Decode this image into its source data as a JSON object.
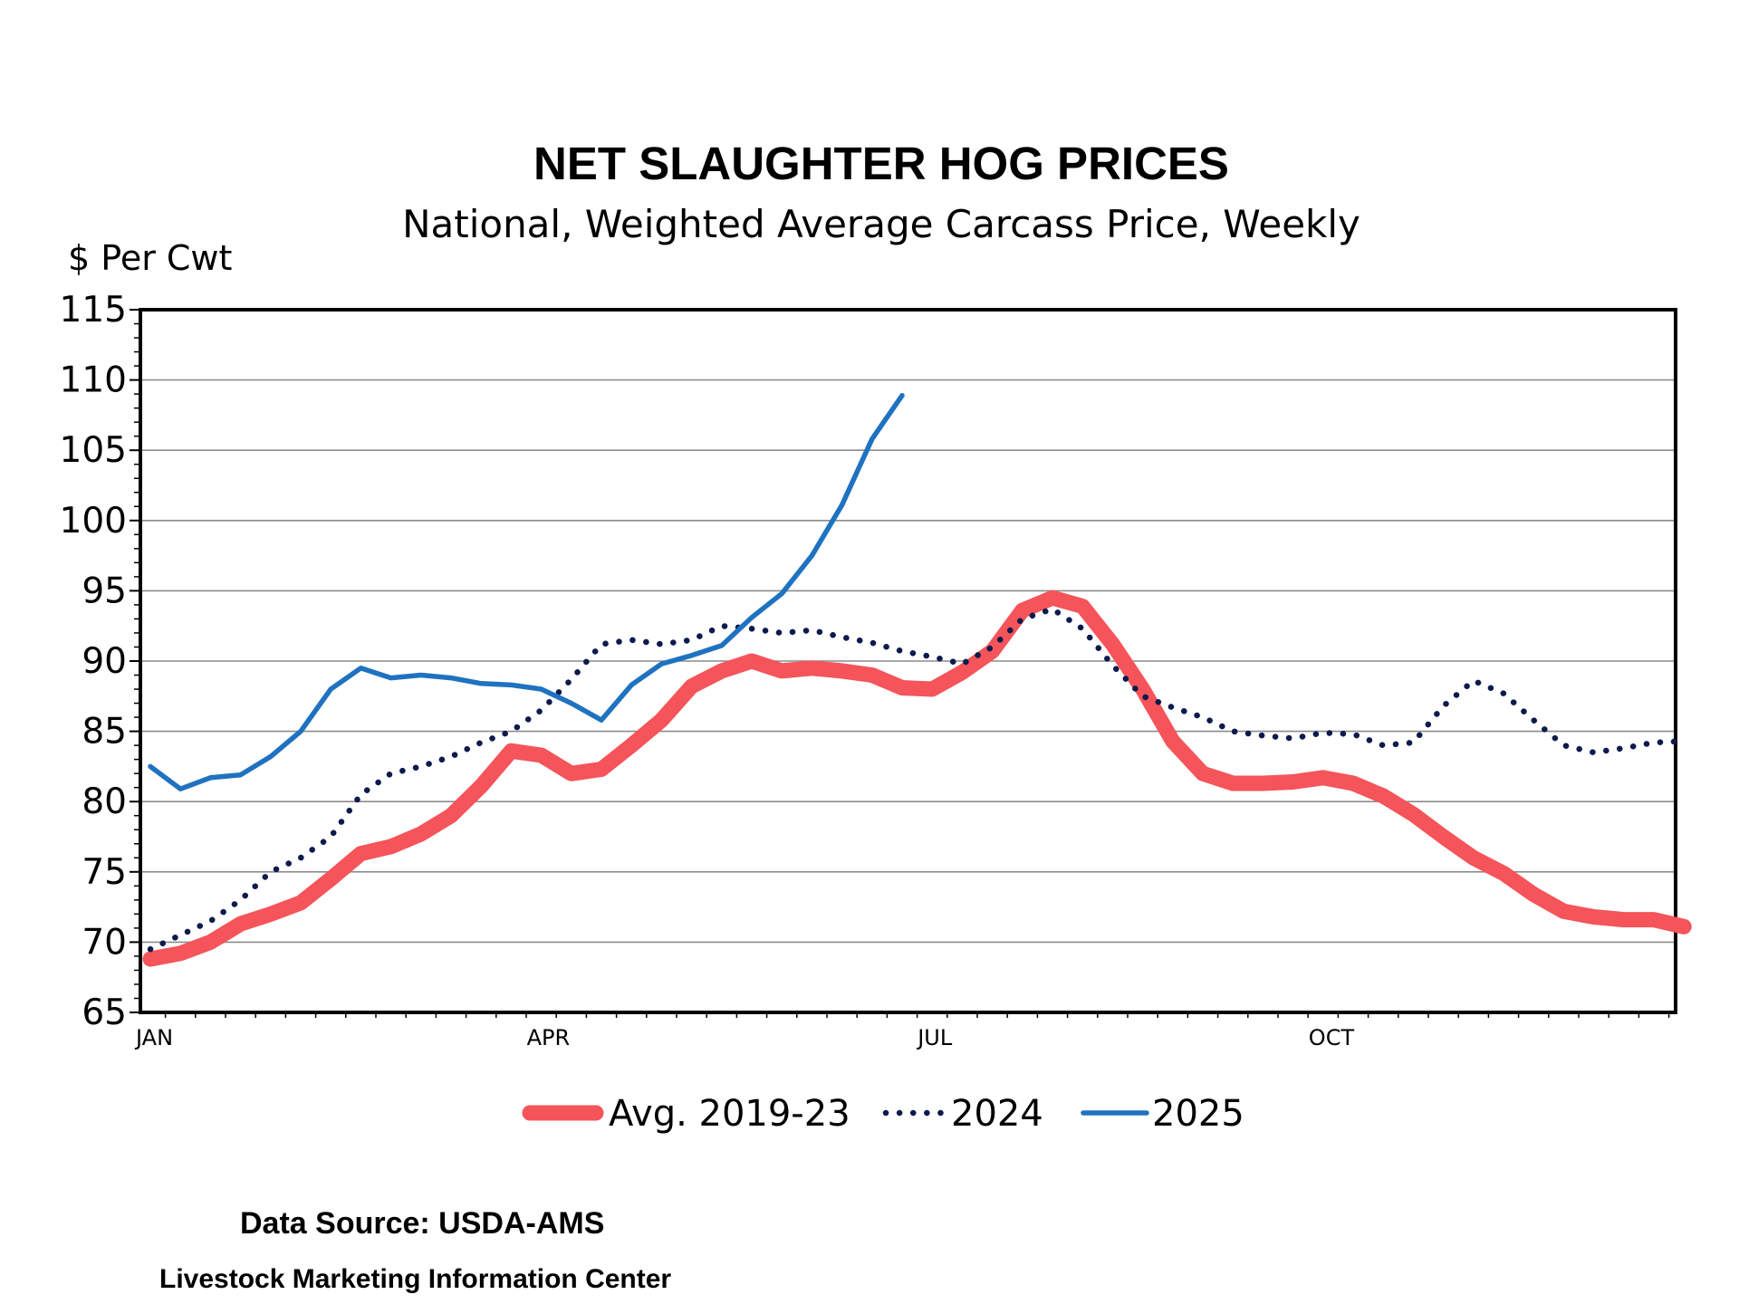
{
  "chart_data": {
    "type": "line",
    "title": "NET SLAUGHTER HOG PRICES",
    "subtitle": "National, Weighted Average Carcass Price, Weekly",
    "ylabel": "$ Per Cwt",
    "xlabel": "",
    "ylim": [
      65,
      115
    ],
    "yticks": [
      65,
      70,
      75,
      80,
      85,
      90,
      95,
      100,
      105,
      110,
      115
    ],
    "xlim": [
      1,
      52
    ],
    "xtick_labels": [
      {
        "label": "JAN",
        "week": 1
      },
      {
        "label": "APR",
        "week": 14
      },
      {
        "label": "JUL",
        "week": 27
      },
      {
        "label": "OCT",
        "week": 40
      }
    ],
    "grid": true,
    "legend_position": "bottom",
    "series": [
      {
        "name": "Avg. 2019-23",
        "style": "thick-solid",
        "color": "#f4545a",
        "x": [
          1,
          2,
          3,
          4,
          5,
          6,
          7,
          8,
          9,
          10,
          11,
          12,
          13,
          14,
          15,
          16,
          17,
          18,
          19,
          20,
          21,
          22,
          23,
          24,
          25,
          26,
          27,
          28,
          29,
          30,
          31,
          32,
          33,
          34,
          35,
          36,
          37,
          38,
          39,
          40,
          41,
          42,
          43,
          44,
          45,
          46,
          47,
          48,
          49,
          50,
          51,
          52
        ],
        "values": [
          68.8,
          69.2,
          70.0,
          71.3,
          72.0,
          72.8,
          74.5,
          76.3,
          76.8,
          77.7,
          79.0,
          81.1,
          83.6,
          83.3,
          82.0,
          82.3,
          84.0,
          85.8,
          88.2,
          89.3,
          90.0,
          89.3,
          89.5,
          89.3,
          89.0,
          88.1,
          88.0,
          89.2,
          90.7,
          93.6,
          94.5,
          93.9,
          91.2,
          88.0,
          84.3,
          82.0,
          81.3,
          81.3,
          81.4,
          81.7,
          81.3,
          80.4,
          79.1,
          77.5,
          76.0,
          74.9,
          73.4,
          72.2,
          71.8,
          71.6,
          71.6,
          71.1
        ]
      },
      {
        "name": "2024",
        "style": "dotted",
        "color": "#0c1a4c",
        "x": [
          1,
          2,
          3,
          4,
          5,
          6,
          7,
          8,
          9,
          10,
          11,
          12,
          13,
          14,
          15,
          16,
          17,
          18,
          19,
          20,
          21,
          22,
          23,
          24,
          25,
          26,
          27,
          28,
          29,
          30,
          31,
          32,
          33,
          34,
          35,
          36,
          37,
          38,
          39,
          40,
          41,
          42,
          43,
          44,
          45,
          46,
          47,
          48,
          49,
          50,
          51,
          52
        ],
        "values": [
          69.5,
          70.5,
          71.5,
          73.0,
          75.0,
          76.0,
          77.5,
          80.5,
          82.0,
          82.5,
          83.2,
          84.2,
          85.0,
          86.5,
          88.7,
          91.2,
          91.5,
          91.2,
          91.5,
          92.5,
          92.3,
          92.0,
          92.2,
          91.7,
          91.3,
          90.7,
          90.3,
          89.8,
          91.0,
          93.0,
          93.7,
          92.3,
          89.7,
          87.5,
          86.7,
          86.0,
          85.0,
          84.7,
          84.5,
          84.9,
          84.8,
          84.0,
          84.2,
          86.8,
          88.6,
          87.7,
          85.8,
          84.0,
          83.5,
          83.8,
          84.2,
          84.3
        ]
      },
      {
        "name": "2025",
        "style": "solid",
        "color": "#1f72c0",
        "x": [
          1,
          2,
          3,
          4,
          5,
          6,
          7,
          8,
          9,
          10,
          11,
          12,
          13,
          14,
          15,
          16,
          17,
          18,
          19,
          20,
          21,
          22,
          23,
          24,
          25,
          26
        ],
        "values": [
          82.5,
          80.9,
          81.7,
          81.9,
          83.2,
          85.0,
          88.0,
          89.5,
          88.8,
          89.0,
          88.8,
          88.4,
          88.3,
          88.0,
          87.0,
          85.8,
          88.3,
          89.8,
          90.4,
          91.1,
          93.1,
          94.8,
          97.5,
          101.1,
          105.8,
          108.9
        ]
      }
    ]
  },
  "source": {
    "line1": "Data Source:  USDA-AMS",
    "line2": "Livestock Marketing Information Center"
  }
}
